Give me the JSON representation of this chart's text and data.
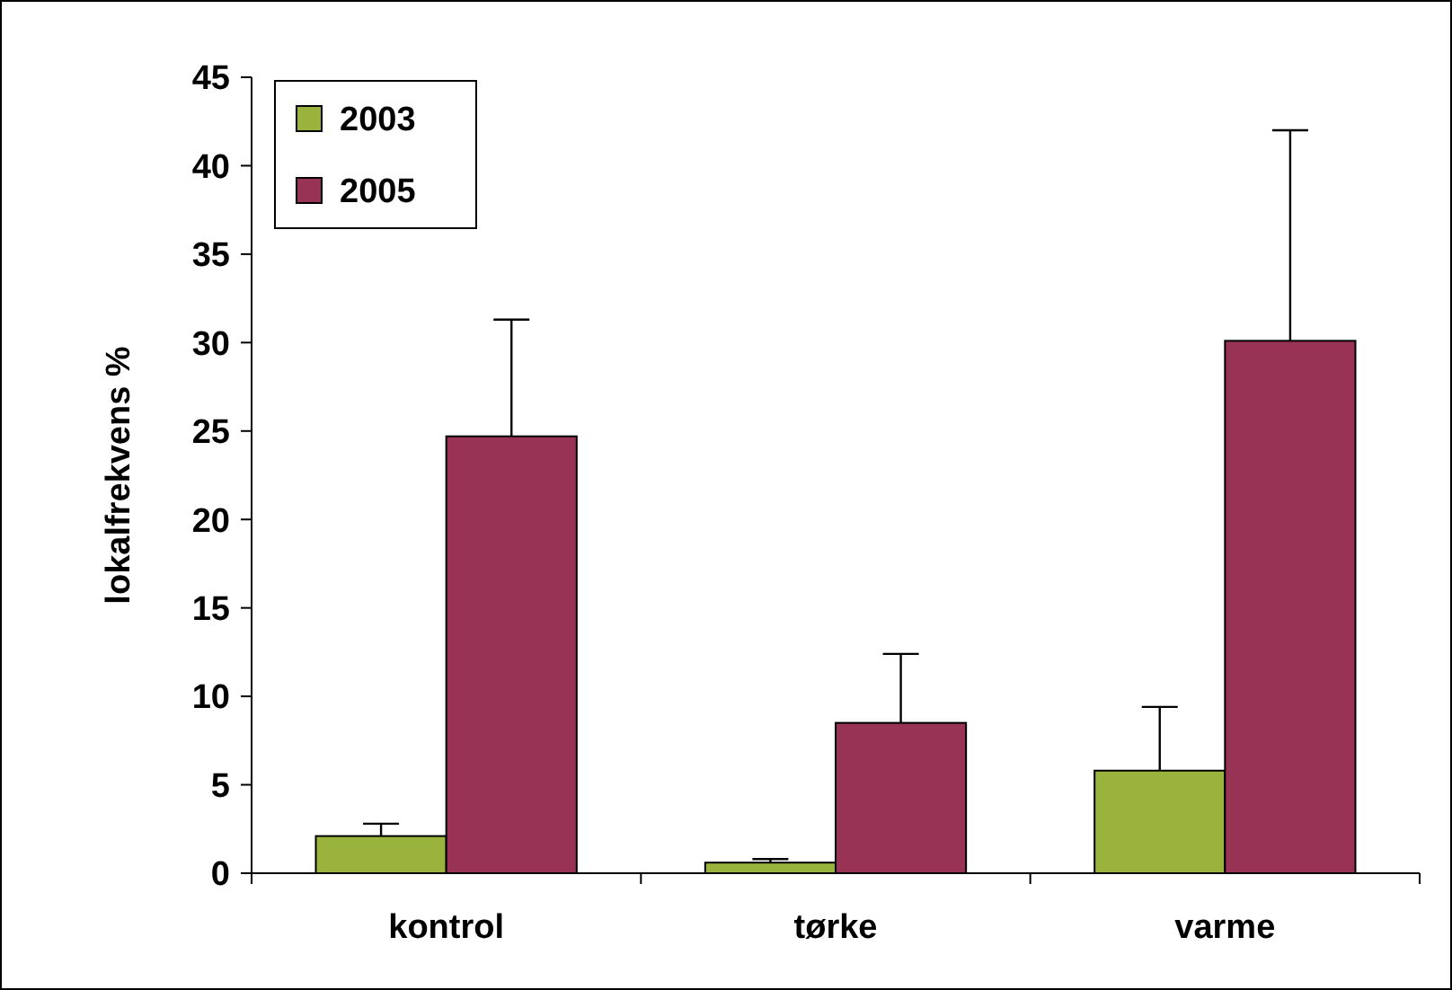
{
  "chart_data": {
    "type": "bar",
    "ylabel": "lokalfrekvens %",
    "categories": [
      "kontrol",
      "tørke",
      "varme"
    ],
    "series": [
      {
        "name": "2003",
        "color": "#99b33c",
        "values": [
          2.1,
          0.6,
          5.8
        ],
        "errors": [
          [
            2.1,
            2.8
          ],
          [
            0.6,
            0.8
          ],
          [
            5.8,
            9.4
          ]
        ]
      },
      {
        "name": "2005",
        "color": "#993355",
        "values": [
          24.7,
          8.5,
          30.1
        ],
        "errors": [
          [
            24.7,
            31.3
          ],
          [
            8.5,
            12.4
          ],
          [
            30.1,
            42
          ]
        ]
      }
    ],
    "ylim": [
      0,
      45
    ],
    "yticks": [
      0,
      5,
      10,
      15,
      20,
      25,
      30,
      35,
      40,
      45
    ],
    "legend": "top left",
    "grid": false
  }
}
